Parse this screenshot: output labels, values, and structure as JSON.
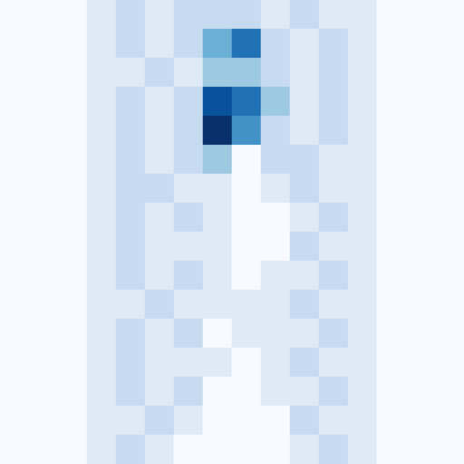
{
  "chart_data": {
    "type": "heatmap",
    "tick_labels": false,
    "x": [
      0,
      1,
      2,
      3,
      4,
      5,
      6,
      7,
      8,
      9,
      10,
      11,
      12,
      13,
      14,
      15
    ],
    "y": [
      0,
      1,
      2,
      3,
      4,
      5,
      6,
      7,
      8,
      9,
      10,
      11,
      12,
      13,
      14,
      15
    ],
    "zlim": [
      0,
      8
    ],
    "color": [
      "#f7fbff",
      "#deebf7",
      "#c6dbef",
      "#9ecae1",
      "#6baed6",
      "#4292c6",
      "#2171b5",
      "#08519c",
      "#08306b"
    ],
    "cells": [
      [
        0,
        0,
        0,
        1,
        2,
        1,
        2,
        2,
        2,
        1,
        2,
        1,
        1,
        0,
        0,
        0
      ],
      [
        0,
        0,
        0,
        1,
        2,
        1,
        2,
        4,
        6,
        2,
        1,
        2,
        1,
        0,
        0,
        0
      ],
      [
        0,
        0,
        0,
        1,
        1,
        2,
        1,
        3,
        3,
        2,
        1,
        2,
        1,
        0,
        0,
        0
      ],
      [
        0,
        0,
        0,
        1,
        2,
        1,
        2,
        7,
        6,
        3,
        1,
        2,
        1,
        0,
        0,
        0
      ],
      [
        0,
        0,
        0,
        1,
        2,
        1,
        2,
        8,
        5,
        2,
        1,
        2,
        1,
        0,
        0,
        0
      ],
      [
        0,
        0,
        0,
        1,
        2,
        1,
        2,
        3,
        0,
        2,
        2,
        1,
        1,
        0,
        0,
        0
      ],
      [
        0,
        0,
        0,
        1,
        2,
        2,
        1,
        1,
        0,
        1,
        2,
        1,
        1,
        0,
        0,
        0
      ],
      [
        0,
        0,
        0,
        1,
        2,
        1,
        2,
        1,
        0,
        0,
        1,
        2,
        1,
        0,
        0,
        0
      ],
      [
        0,
        0,
        0,
        1,
        2,
        1,
        1,
        1,
        0,
        0,
        2,
        1,
        1,
        0,
        0,
        0
      ],
      [
        0,
        0,
        0,
        1,
        2,
        1,
        2,
        1,
        0,
        1,
        1,
        2,
        1,
        0,
        0,
        0
      ],
      [
        0,
        0,
        0,
        1,
        1,
        2,
        1,
        1,
        1,
        1,
        2,
        1,
        1,
        0,
        0,
        0
      ],
      [
        0,
        0,
        0,
        1,
        2,
        1,
        2,
        0,
        1,
        1,
        1,
        2,
        1,
        0,
        0,
        0
      ],
      [
        0,
        0,
        0,
        1,
        2,
        1,
        1,
        1,
        0,
        1,
        2,
        1,
        1,
        0,
        0,
        0
      ],
      [
        0,
        0,
        0,
        1,
        2,
        1,
        2,
        0,
        0,
        1,
        1,
        2,
        1,
        0,
        0,
        0
      ],
      [
        0,
        0,
        0,
        1,
        1,
        2,
        1,
        0,
        0,
        0,
        2,
        1,
        1,
        0,
        0,
        0
      ],
      [
        0,
        0,
        0,
        1,
        2,
        1,
        0,
        0,
        0,
        0,
        1,
        2,
        1,
        0,
        0,
        0
      ]
    ]
  }
}
